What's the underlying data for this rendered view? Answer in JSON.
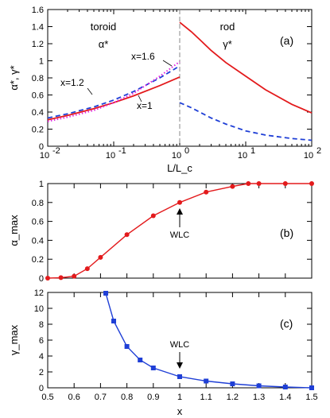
{
  "panels": {
    "a": {
      "tag": "(a)",
      "ylabel": "α*, γ*",
      "xlabel": "L/L_c",
      "region_left": {
        "title": "toroid",
        "symbol": "α*"
      },
      "region_right": {
        "title": "rod",
        "symbol": "γ*"
      },
      "curve_labels": [
        "x=1.6",
        "x=1.2",
        "x=1"
      ],
      "x_ticks": [
        "10^-2",
        "10^-1",
        "10^0",
        "10^1",
        "10^2"
      ],
      "y_ticks": [
        "0",
        "0.2",
        "0.4",
        "0.6",
        "0.8",
        "1",
        "1.2",
        "1.4",
        "1.6"
      ]
    },
    "b": {
      "tag": "(b)",
      "ylabel": "α_max",
      "annotation": "WLC",
      "y_ticks": [
        "0",
        "0.2",
        "0.4",
        "0.6",
        "0.8",
        "1"
      ]
    },
    "c": {
      "tag": "(c)",
      "ylabel": "γ_max",
      "annotation": "WLC",
      "xlabel": "x",
      "x_ticks": [
        "0.5",
        "0.6",
        "0.7",
        "0.8",
        "0.9",
        "1",
        "1.1",
        "1.2",
        "1.3",
        "1.4",
        "1.5"
      ],
      "y_ticks": [
        "0",
        "2",
        "4",
        "6",
        "8",
        "10",
        "12"
      ]
    }
  },
  "colors": {
    "red": "#e31a1c",
    "blue": "#1f3fd6",
    "magenta": "#e020e0",
    "gray": "#888888"
  },
  "chart_data": [
    {
      "type": "line",
      "panel": "a",
      "xscale": "log",
      "xlim": [
        0.01,
        100
      ],
      "ylim": [
        0,
        1.6
      ],
      "divider_x": 1,
      "series": [
        {
          "name": "x=1",
          "region": "toroid",
          "color": "red",
          "dash": "solid",
          "x": [
            0.01,
            0.02,
            0.05,
            0.1,
            0.2,
            0.5,
            1.0
          ],
          "y": [
            0.31,
            0.36,
            0.44,
            0.51,
            0.59,
            0.71,
            0.81
          ]
        },
        {
          "name": "x=1.2",
          "region": "toroid",
          "color": "blue",
          "dash": "dashed",
          "x": [
            0.01,
            0.02,
            0.05,
            0.1,
            0.2,
            0.5,
            1.0
          ],
          "y": [
            0.33,
            0.38,
            0.46,
            0.54,
            0.64,
            0.8,
            0.94
          ]
        },
        {
          "name": "x=1.6",
          "region": "toroid",
          "color": "magenta",
          "dash": "dotted",
          "x": [
            0.01,
            0.02,
            0.05,
            0.1,
            0.2,
            0.5,
            1.0
          ],
          "y": [
            0.29,
            0.34,
            0.42,
            0.51,
            0.62,
            0.82,
            0.99
          ]
        },
        {
          "region": "rod",
          "color": "red",
          "dash": "solid",
          "x": [
            1.0,
            1.5,
            2,
            3,
            5,
            10,
            20,
            50,
            100
          ],
          "y": [
            1.45,
            1.34,
            1.25,
            1.12,
            0.98,
            0.82,
            0.66,
            0.49,
            0.39
          ]
        },
        {
          "region": "rod",
          "color": "blue",
          "dash": "dashed",
          "x": [
            1.0,
            1.5,
            2,
            3,
            5,
            10,
            20,
            50,
            100
          ],
          "y": [
            0.51,
            0.45,
            0.4,
            0.33,
            0.26,
            0.18,
            0.13,
            0.09,
            0.07
          ]
        }
      ]
    },
    {
      "type": "line",
      "panel": "b",
      "xlim": [
        0.5,
        1.5
      ],
      "ylim": [
        0,
        1
      ],
      "series": [
        {
          "color": "red",
          "marker": "circle",
          "x": [
            0.5,
            0.55,
            0.6,
            0.65,
            0.7,
            0.8,
            0.9,
            1.0,
            1.1,
            1.2,
            1.26,
            1.3,
            1.4,
            1.5
          ],
          "y": [
            0.0,
            0.005,
            0.02,
            0.1,
            0.22,
            0.46,
            0.66,
            0.8,
            0.91,
            0.97,
            1.0,
            1.0,
            1.0,
            1.0
          ]
        }
      ],
      "annotation": {
        "text": "WLC",
        "x": 1.0
      }
    },
    {
      "type": "line",
      "panel": "c",
      "xlim": [
        0.5,
        1.5
      ],
      "ylim": [
        0,
        12
      ],
      "series": [
        {
          "color": "blue",
          "marker": "square",
          "x": [
            0.72,
            0.75,
            0.8,
            0.85,
            0.9,
            1.0,
            1.1,
            1.2,
            1.3,
            1.4,
            1.5
          ],
          "y": [
            11.9,
            8.4,
            5.2,
            3.5,
            2.5,
            1.4,
            0.85,
            0.5,
            0.25,
            0.1,
            0.0
          ]
        }
      ],
      "annotation": {
        "text": "WLC",
        "x": 1.0
      }
    }
  ]
}
